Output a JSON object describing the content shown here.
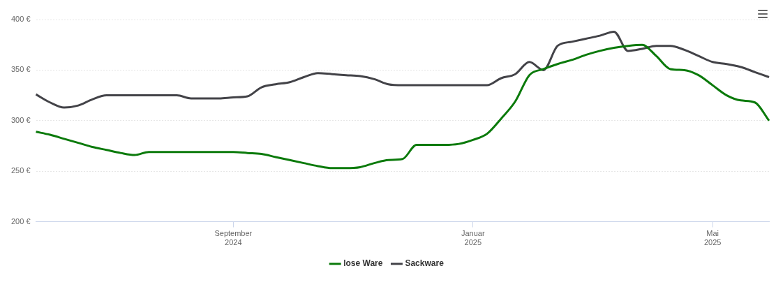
{
  "chart_data": {
    "type": "line",
    "categories": [
      null,
      null,
      null,
      null,
      null,
      null,
      null,
      null,
      null,
      null,
      null,
      null,
      null,
      null,
      "September 2024",
      null,
      null,
      null,
      null,
      null,
      null,
      null,
      null,
      null,
      null,
      null,
      null,
      null,
      null,
      null,
      null,
      "Januar 2025",
      null,
      null,
      null,
      null,
      null,
      null,
      null,
      null,
      null,
      null,
      null,
      null,
      null,
      null,
      null,
      null,
      "Mai 2025",
      null,
      null,
      null,
      null
    ],
    "series": [
      {
        "name": "lose Ware",
        "color": "#0b7a0b",
        "values": [
          289,
          286,
          282,
          278,
          274,
          271,
          268,
          266,
          269,
          269,
          269,
          269,
          269,
          269,
          269,
          268,
          267,
          264,
          261,
          258,
          255,
          253,
          253,
          254,
          258,
          261,
          262,
          276,
          276,
          276,
          277,
          281,
          287,
          302,
          319,
          345,
          351,
          356,
          360,
          365,
          369,
          372,
          374,
          375,
          364,
          351,
          350,
          345,
          335,
          325,
          320,
          318,
          300
        ]
      },
      {
        "name": "Sackware",
        "color": "#434348",
        "values": [
          326,
          318,
          313,
          315,
          321,
          325,
          325,
          325,
          325,
          325,
          325,
          322,
          322,
          322,
          323,
          324,
          333,
          336,
          338,
          343,
          347,
          346,
          345,
          344,
          341,
          336,
          335,
          335,
          335,
          335,
          335,
          335,
          335,
          342,
          346,
          358,
          350,
          374,
          378,
          381,
          384,
          388,
          369,
          371,
          374,
          374,
          370,
          364,
          358,
          356,
          353,
          348,
          343
        ]
      }
    ],
    "ylim": [
      200,
      400
    ],
    "yticks": [
      {
        "value": 200,
        "label": "200 €"
      },
      {
        "value": 250,
        "label": "250 €"
      },
      {
        "value": 300,
        "label": "300 €"
      },
      {
        "value": 350,
        "label": "350 €"
      },
      {
        "value": 400,
        "label": "400 €"
      }
    ],
    "grid": true,
    "legend": "bottom"
  }
}
